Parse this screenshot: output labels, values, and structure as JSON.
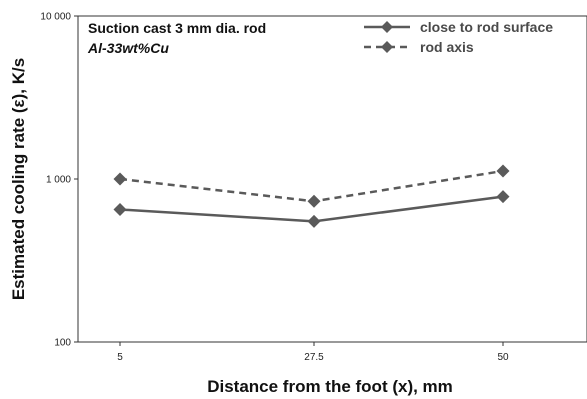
{
  "chart_data": {
    "type": "line",
    "x": [
      5,
      27.5,
      50
    ],
    "x_tick_labels": [
      "5",
      "27.5",
      "50"
    ],
    "y_tick_labels": [
      "100",
      "1 000",
      "10 000"
    ],
    "y_ticks": [
      100,
      1000,
      10000
    ],
    "ylim": [
      100,
      10000
    ],
    "y_scale": "log",
    "xlabel": "Distance from the foot (x), mm",
    "ylabel": "Estimated cooling rate (ε), K/s",
    "annotations": [
      "Suction cast 3 mm dia. rod",
      "Al-33wt%Cu"
    ],
    "legend_position": "top-right",
    "grid": false,
    "series": [
      {
        "name": "close to rod surface",
        "values": [
          650,
          550,
          780
        ],
        "line_style": "solid",
        "marker": "diamond",
        "color": "#5a5a5a"
      },
      {
        "name": "rod axis",
        "values": [
          1000,
          730,
          1120
        ],
        "line_style": "dashed",
        "marker": "diamond",
        "color": "#5a5a5a"
      }
    ]
  }
}
